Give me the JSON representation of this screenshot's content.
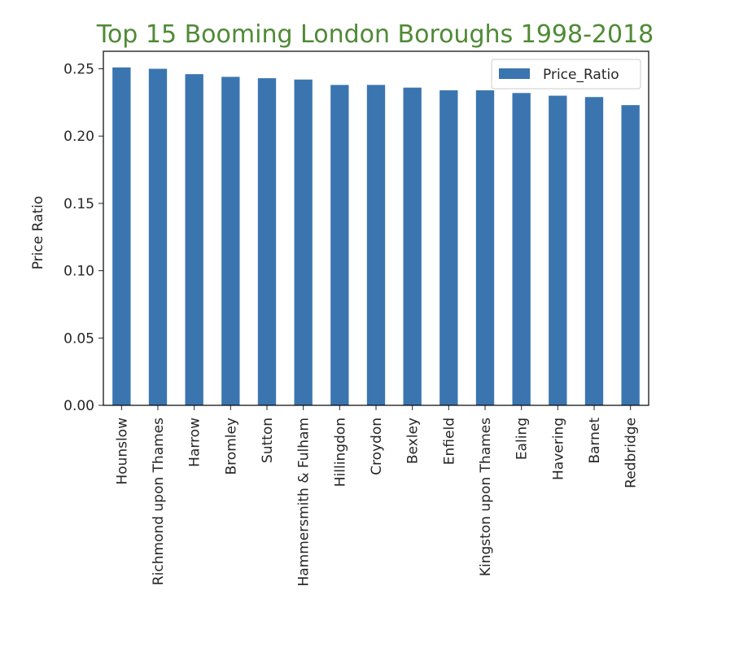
{
  "chart_data": {
    "type": "bar",
    "title": "Top 15 Booming London Boroughs 1998-2018",
    "xlabel": "",
    "ylabel": "Price Ratio",
    "ylim": [
      0,
      0.263
    ],
    "yticks": [
      "0.00",
      "0.05",
      "0.10",
      "0.15",
      "0.20",
      "0.25"
    ],
    "ytick_values": [
      0,
      0.05,
      0.1,
      0.15,
      0.2,
      0.25
    ],
    "categories": [
      "Hounslow",
      "Richmond upon Thames",
      "Harrow",
      "Bromley",
      "Sutton",
      "Hammersmith & Fulham",
      "Hillingdon",
      "Croydon",
      "Bexley",
      "Enfield",
      "Kingston upon Thames",
      "Ealing",
      "Havering",
      "Barnet",
      "Redbridge"
    ],
    "series": [
      {
        "name": "Price_Ratio",
        "values": [
          0.251,
          0.25,
          0.246,
          0.244,
          0.243,
          0.242,
          0.238,
          0.238,
          0.236,
          0.234,
          0.234,
          0.232,
          0.23,
          0.229,
          0.223
        ]
      }
    ],
    "legend": "top-right",
    "grid": false,
    "colors": {
      "bar": "#3a75b0",
      "title": "#4f8a35",
      "axis": "#262626",
      "frame": "#000000"
    }
  }
}
